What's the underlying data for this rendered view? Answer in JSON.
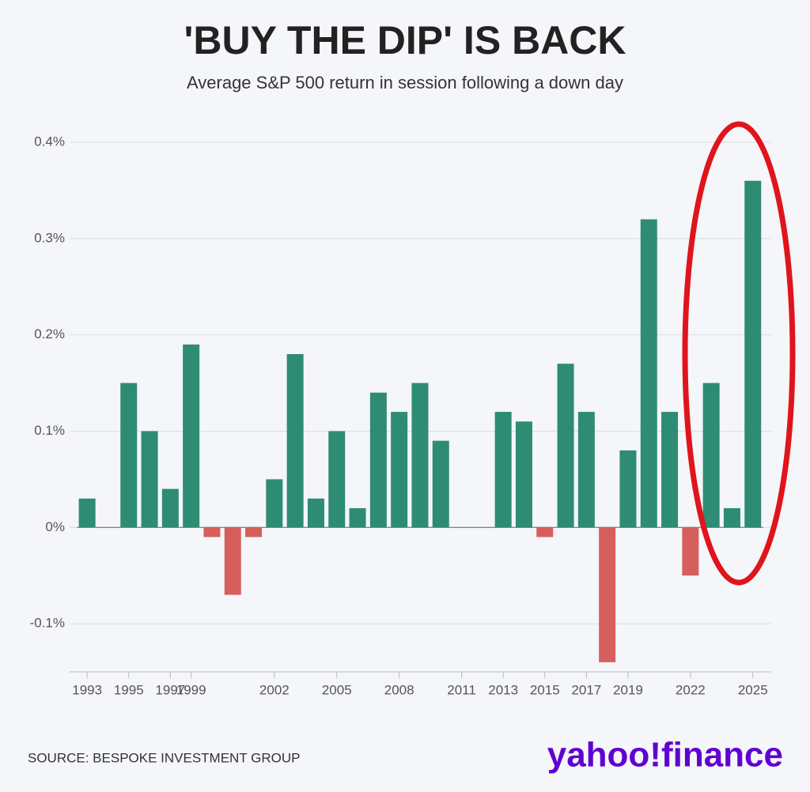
{
  "chart_data": {
    "type": "bar",
    "title": "'BUY THE DIP' IS BACK",
    "subtitle": "Average S&P 500 return in session following a down day",
    "source": "SOURCE: BESPOKE INVESTMENT GROUP",
    "brand": "yahoo!finance",
    "categories": [
      "1993",
      null,
      "1995",
      null,
      "1997",
      "1999",
      null,
      null,
      null,
      "2002",
      null,
      null,
      "2005",
      null,
      null,
      "2008",
      null,
      null,
      "2011",
      null,
      "2013",
      null,
      "2015",
      null,
      "2017",
      null,
      "2019",
      null,
      null,
      "2022",
      null,
      null,
      "2025"
    ],
    "values": [
      0.03,
      0,
      0.15,
      0.1,
      0.04,
      0.19,
      -0.01,
      -0.07,
      -0.01,
      0.05,
      0.18,
      0.03,
      0.1,
      0.02,
      0.14,
      0.12,
      0.15,
      0.09,
      0,
      0,
      0.12,
      0.11,
      -0.01,
      0.17,
      0.12,
      -0.14,
      0.08,
      0.32,
      0.12,
      -0.05,
      0.15,
      0.02,
      0.36
    ],
    "positive_color": "#2e8b74",
    "negative_color": "#d65f5d",
    "ylim": [
      -0.15,
      0.4
    ],
    "yticks": [
      {
        "value": -0.1,
        "label": "-0.1%"
      },
      {
        "value": 0,
        "label": "0%"
      },
      {
        "value": 0.1,
        "label": "0.1%"
      },
      {
        "value": 0.2,
        "label": "0.2%"
      },
      {
        "value": 0.3,
        "label": "0.3%"
      },
      {
        "value": 0.4,
        "label": "0.4%"
      }
    ],
    "grid": true
  }
}
